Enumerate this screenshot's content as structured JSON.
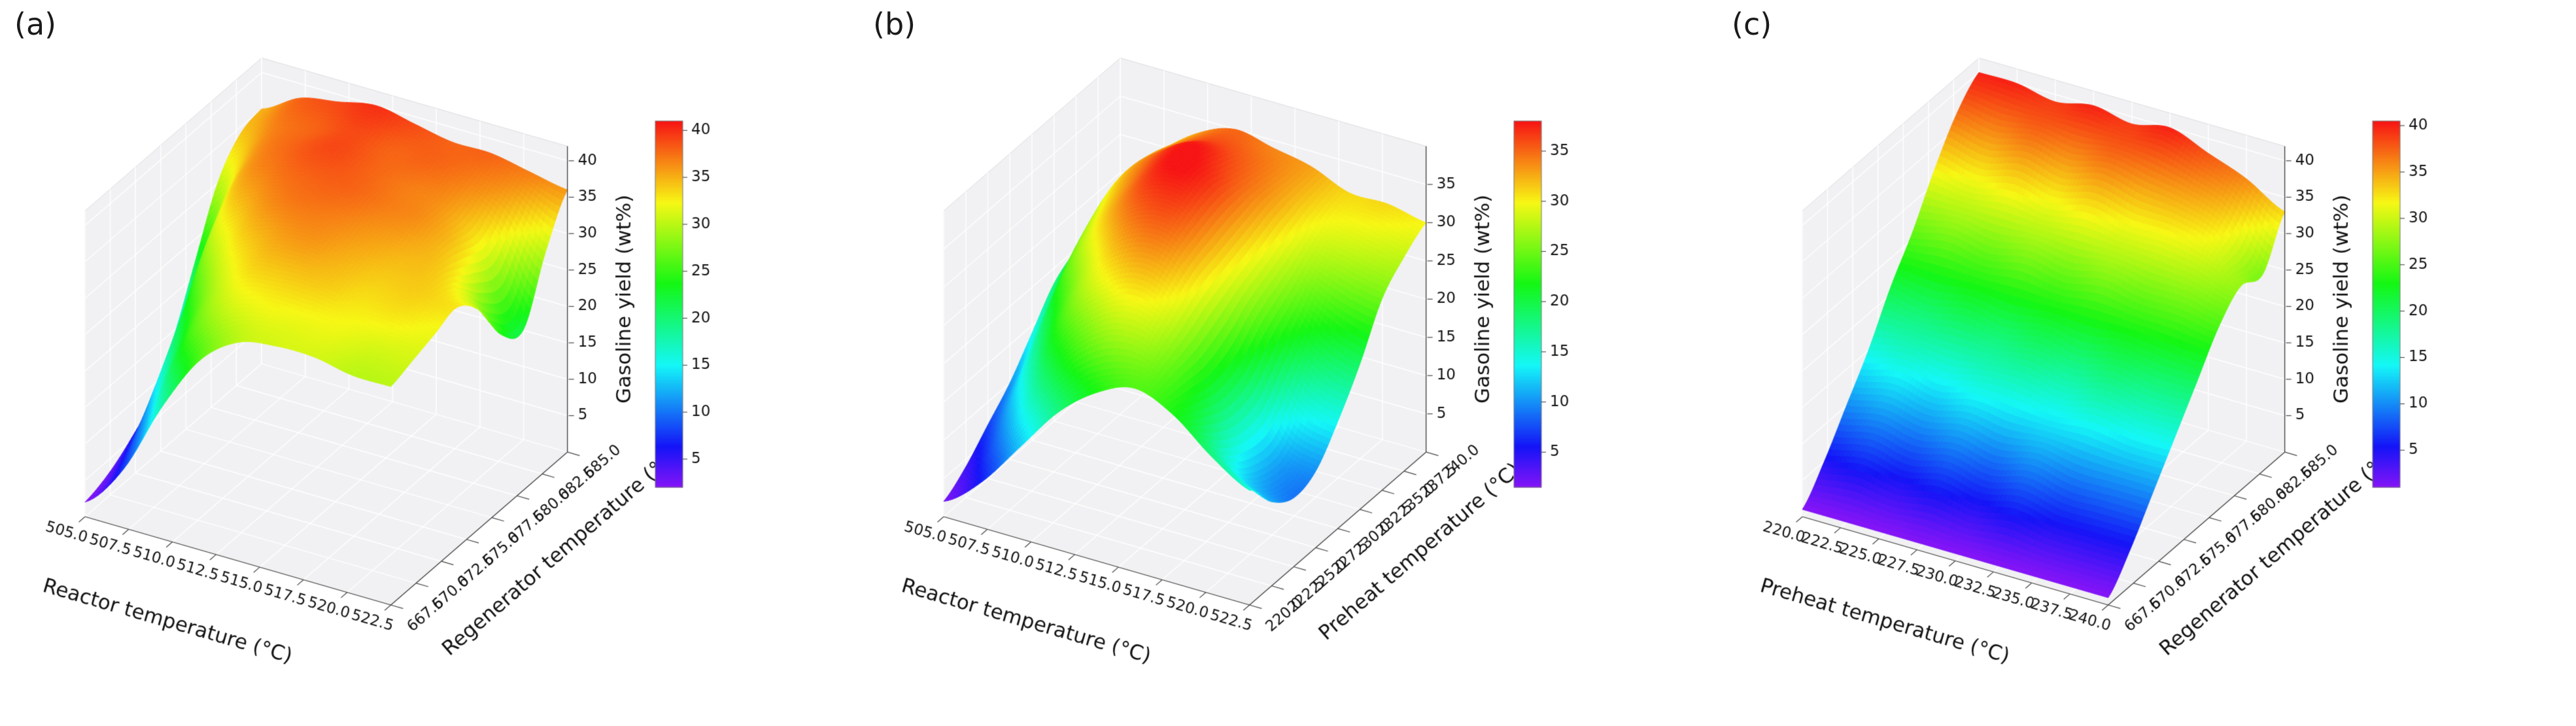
{
  "figure": {
    "background": "#ffffff",
    "pane_color": "#f1f1f3",
    "gridline_color": "#ffffff",
    "text_color": "#111111"
  },
  "chart_data": [
    {
      "id": "a",
      "panel_label": "(a)",
      "type": "heatmap",
      "representation": "3d_surface",
      "xlabel": "Reactor temperature (°C)",
      "ylabel": "Regenerator temperature (°C)",
      "zlabel": "Gasoline yield (wt%)",
      "x_ticks": [
        "505.0",
        "507.5",
        "510.0",
        "512.5",
        "515.0",
        "517.5",
        "520.0",
        "522.5"
      ],
      "y_ticks": [
        "667.5",
        "670.0",
        "672.5",
        "675.0",
        "677.5",
        "680.0",
        "682.5",
        "685.0"
      ],
      "z_ticks": [
        5,
        10,
        15,
        20,
        25,
        30,
        35,
        40
      ],
      "x_range": [
        505.0,
        522.5
      ],
      "y_range": [
        667.5,
        685.0
      ],
      "z_range": [
        0,
        42
      ],
      "colorbar": {
        "colormap": "rainbow",
        "range": [
          2,
          41
        ],
        "ticks": [
          5,
          10,
          15,
          20,
          25,
          30,
          35,
          40
        ]
      },
      "z_grid": [
        [
          2,
          8,
          18,
          26,
          30,
          31,
          31,
          30,
          30
        ],
        [
          3,
          12,
          24,
          30,
          32,
          32,
          32,
          31,
          31
        ],
        [
          5,
          18,
          28,
          33,
          34,
          34,
          33,
          33,
          32
        ],
        [
          8,
          24,
          32,
          35,
          36,
          35,
          34,
          34,
          33
        ],
        [
          14,
          30,
          35,
          37,
          37,
          36,
          35,
          34,
          30
        ],
        [
          22,
          34,
          37,
          38,
          38,
          37,
          36,
          33,
          24
        ],
        [
          30,
          36,
          38,
          39,
          38,
          37,
          36,
          32,
          22
        ],
        [
          34,
          37,
          38,
          39,
          38,
          38,
          37,
          35,
          30
        ],
        [
          35,
          38,
          39,
          40,
          39,
          38,
          38,
          37,
          36
        ]
      ]
    },
    {
      "id": "b",
      "panel_label": "(b)",
      "type": "heatmap",
      "representation": "3d_surface",
      "xlabel": "Reactor temperature (°C)",
      "ylabel": "Preheat temperature (°C)",
      "zlabel": "Gasoline yield (wt%)",
      "x_ticks": [
        "505.0",
        "507.5",
        "510.0",
        "512.5",
        "515.0",
        "517.5",
        "520.0",
        "522.5"
      ],
      "y_ticks": [
        "220.0",
        "222.5",
        "225.0",
        "227.5",
        "230.0",
        "232.5",
        "235.0",
        "237.5",
        "240.0"
      ],
      "z_ticks": [
        5,
        10,
        15,
        20,
        25,
        30,
        35
      ],
      "x_range": [
        505.0,
        522.5
      ],
      "y_range": [
        220.0,
        240.0
      ],
      "z_range": [
        0,
        40
      ],
      "colorbar": {
        "colormap": "rainbow",
        "range": [
          1.5,
          38
        ],
        "ticks": [
          5,
          10,
          15,
          20,
          25,
          30,
          35
        ]
      },
      "z_grid": [
        [
          2,
          6,
          12,
          18,
          22,
          24,
          22,
          18,
          15
        ],
        [
          4,
          10,
          18,
          24,
          27,
          26,
          21,
          14,
          11
        ],
        [
          7,
          15,
          24,
          29,
          31,
          28,
          20,
          12,
          9
        ],
        [
          10,
          20,
          28,
          33,
          34,
          30,
          21,
          12,
          10
        ],
        [
          14,
          25,
          32,
          36,
          36,
          31,
          24,
          16,
          14
        ],
        [
          18,
          28,
          34,
          38,
          37,
          32,
          26,
          21,
          19
        ],
        [
          20,
          30,
          35,
          38,
          36,
          33,
          28,
          26,
          25
        ],
        [
          22,
          30,
          34,
          36,
          35,
          33,
          30,
          29,
          28
        ],
        [
          23,
          29,
          33,
          35,
          34,
          33,
          31,
          31,
          30
        ]
      ]
    },
    {
      "id": "c",
      "panel_label": "(c)",
      "type": "heatmap",
      "representation": "3d_surface",
      "xlabel": "Preheat temperature (°C)",
      "ylabel": "Regenerator temperature (°C)",
      "zlabel": "Gasoline yield (wt%)",
      "x_ticks": [
        "220.0",
        "222.5",
        "225.0",
        "227.5",
        "230.0",
        "232.5",
        "235.0",
        "237.5",
        "240.0"
      ],
      "y_ticks": [
        "667.5",
        "670.0",
        "672.5",
        "675.0",
        "677.5",
        "680.0",
        "682.5",
        "685.0"
      ],
      "z_ticks": [
        5,
        10,
        15,
        20,
        25,
        30,
        35,
        40
      ],
      "x_range": [
        220.0,
        240.0
      ],
      "y_range": [
        667.5,
        685.0
      ],
      "z_range": [
        0,
        42
      ],
      "colorbar": {
        "colormap": "rainbow",
        "range": [
          1,
          40.5
        ],
        "ticks": [
          5,
          10,
          15,
          20,
          25,
          30,
          35,
          40
        ]
      },
      "z_grid": [
        [
          1,
          1,
          1,
          1,
          1,
          1,
          1,
          1,
          1
        ],
        [
          5,
          6,
          5,
          6,
          5,
          6,
          5,
          5,
          5
        ],
        [
          10,
          11,
          10,
          11,
          10,
          11,
          10,
          10,
          10
        ],
        [
          15,
          16,
          15,
          16,
          16,
          15,
          16,
          15,
          15
        ],
        [
          21,
          20,
          21,
          20,
          21,
          20,
          21,
          20,
          20
        ],
        [
          26,
          27,
          26,
          27,
          26,
          27,
          26,
          26,
          25
        ],
        [
          32,
          31,
          32,
          31,
          32,
          31,
          31,
          30,
          28
        ],
        [
          37,
          36,
          37,
          36,
          37,
          36,
          35,
          33,
          27
        ],
        [
          40,
          40,
          39,
          40,
          39,
          40,
          38,
          36,
          33
        ]
      ]
    }
  ]
}
